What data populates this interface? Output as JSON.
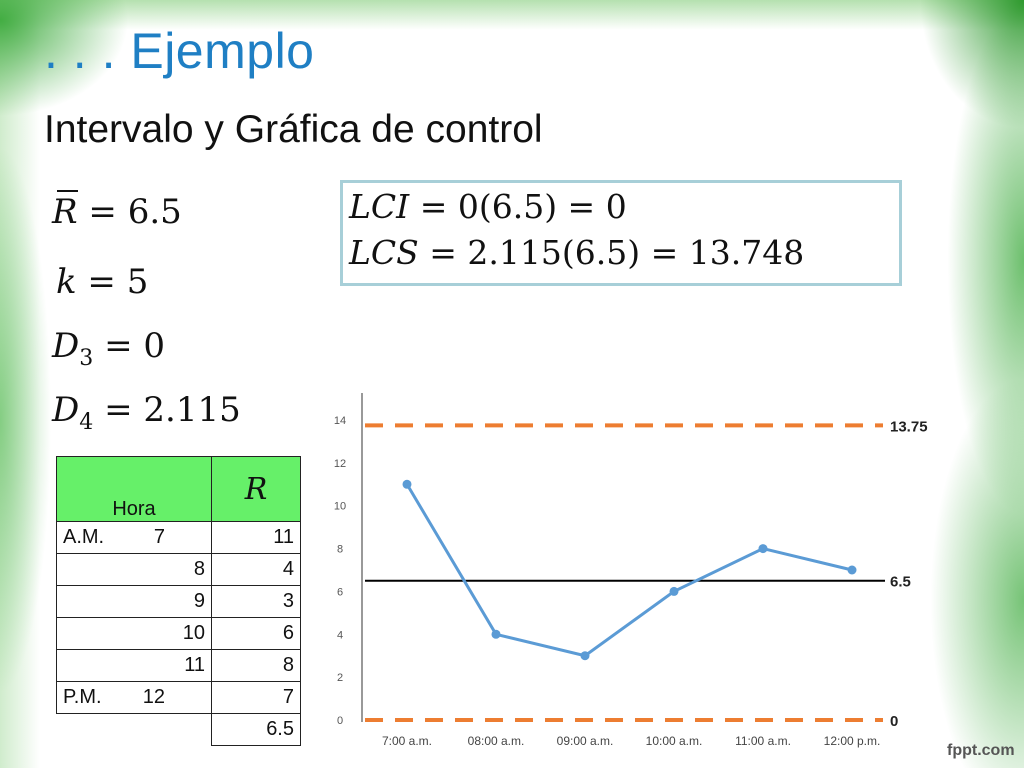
{
  "slide": {
    "title": ". . . Ejemplo",
    "subtitle": "Intervalo y Gráfica de control",
    "watermark": "fppt.com",
    "accent_color": "#1f7fc4"
  },
  "equations": {
    "rbar": {
      "symbol": "R",
      "value": "= 6.5"
    },
    "k": {
      "symbol": "k",
      "value": "= 5"
    },
    "d3": {
      "symbol": "D",
      "sub": "3",
      "value": "= 0"
    },
    "d4": {
      "symbol": "D",
      "sub": "4",
      "value": "= 2.115"
    }
  },
  "formulas": {
    "lci": {
      "symbol": "LCI",
      "expr": "= 0(6.5) = 0"
    },
    "lcs": {
      "symbol": "LCS",
      "expr": "= 2.115(6.5) = 13.748"
    }
  },
  "table": {
    "headers": [
      "Hora",
      "R"
    ],
    "rows": [
      {
        "prefix": "A.M.",
        "hora": "7",
        "r": "11"
      },
      {
        "prefix": "",
        "hora": "8",
        "r": "4"
      },
      {
        "prefix": "",
        "hora": "9",
        "r": "3"
      },
      {
        "prefix": "",
        "hora": "10",
        "r": "6"
      },
      {
        "prefix": "",
        "hora": "11",
        "r": "8"
      },
      {
        "prefix": "P.M.",
        "hora": "12",
        "r": "7"
      }
    ],
    "average": "6.5"
  },
  "chart_data": {
    "type": "line",
    "categories": [
      "7:00 a.m.",
      "08:00 a.m.",
      "09:00 a.m.",
      "10:00 a.m.",
      "11:00 a.m.",
      "12:00 p.m."
    ],
    "series": [
      {
        "values": [
          11,
          4,
          3,
          6,
          8,
          7
        ],
        "color": "#5b9bd5"
      }
    ],
    "reference_lines": [
      {
        "label": "13.75",
        "value": 13.75,
        "style": "dashed",
        "color": "#ed7d31"
      },
      {
        "label": "6.5",
        "value": 6.5,
        "style": "solid",
        "color": "#000000"
      },
      {
        "label": "0",
        "value": 0,
        "style": "dashed",
        "color": "#ed7d31"
      }
    ],
    "yticks": [
      "0",
      "2",
      "4",
      "6",
      "8",
      "10",
      "12",
      "14"
    ],
    "ylim": [
      0,
      14
    ],
    "grid": false,
    "legend": "none"
  }
}
